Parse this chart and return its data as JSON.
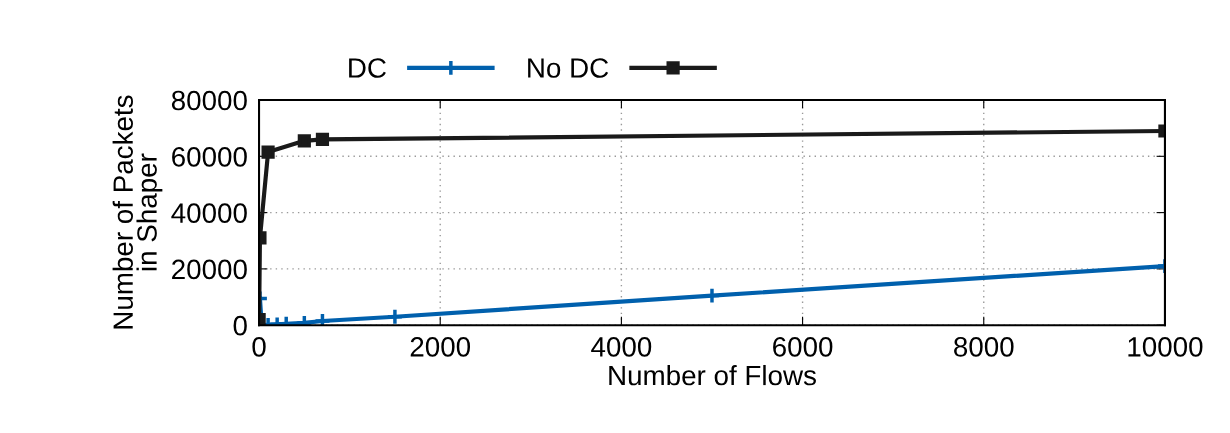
{
  "chart_data": {
    "type": "line",
    "xlabel": "Number of Flows",
    "ylabel": "Number of Packets\nin Shaper",
    "xlim": [
      0,
      10000
    ],
    "xticks": [
      0,
      2000,
      4000,
      6000,
      8000,
      10000
    ],
    "ylim": [
      0,
      80000
    ],
    "yticks": [
      0,
      20000,
      40000,
      60000,
      80000
    ],
    "grid": true,
    "legend": "top",
    "series": [
      {
        "name": "DC",
        "color": "#0060ad",
        "marker": "cross",
        "x": [
          10,
          30,
          100,
          200,
          300,
          500,
          700,
          1500,
          5000,
          10000
        ],
        "values": [
          9500,
          0,
          100,
          300,
          500,
          800,
          1500,
          3000,
          10500,
          21000
        ]
      },
      {
        "name": "No DC",
        "color": "#1a1a1a",
        "marker": "square",
        "x": [
          1,
          10,
          100,
          500,
          700,
          10000
        ],
        "values": [
          2000,
          31000,
          61500,
          65500,
          66000,
          69000
        ]
      }
    ]
  }
}
